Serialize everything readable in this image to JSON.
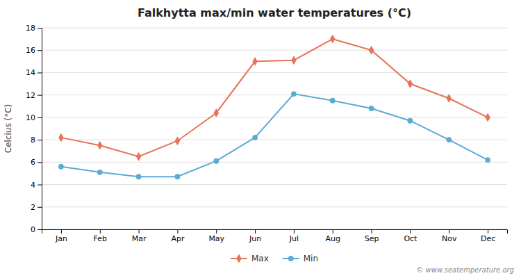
{
  "chart_data": {
    "type": "line",
    "title": "Falkhytta max/min water temperatures (°C)",
    "ylabel": "Celcius (°C)",
    "categories": [
      "Jan",
      "Feb",
      "Mar",
      "Apr",
      "May",
      "Jun",
      "Jul",
      "Aug",
      "Sep",
      "Oct",
      "Nov",
      "Dec"
    ],
    "series": [
      {
        "name": "Max",
        "color": "#E8735A",
        "marker": "diamond",
        "values": [
          8.2,
          7.5,
          6.5,
          7.9,
          10.4,
          15.0,
          15.1,
          17.0,
          16.0,
          13.0,
          11.7,
          10.0
        ]
      },
      {
        "name": "Min",
        "color": "#5BACD4",
        "marker": "circle",
        "values": [
          5.6,
          5.1,
          4.7,
          4.7,
          6.1,
          8.2,
          12.1,
          11.5,
          10.8,
          9.7,
          8.0,
          6.2
        ]
      }
    ],
    "ylim": [
      0,
      18
    ],
    "yticks": [
      0,
      2,
      4,
      6,
      8,
      10,
      12,
      14,
      16,
      18
    ],
    "grid": true,
    "legend": "bottom",
    "annotations": [
      "© www.seatemperature.org"
    ]
  }
}
